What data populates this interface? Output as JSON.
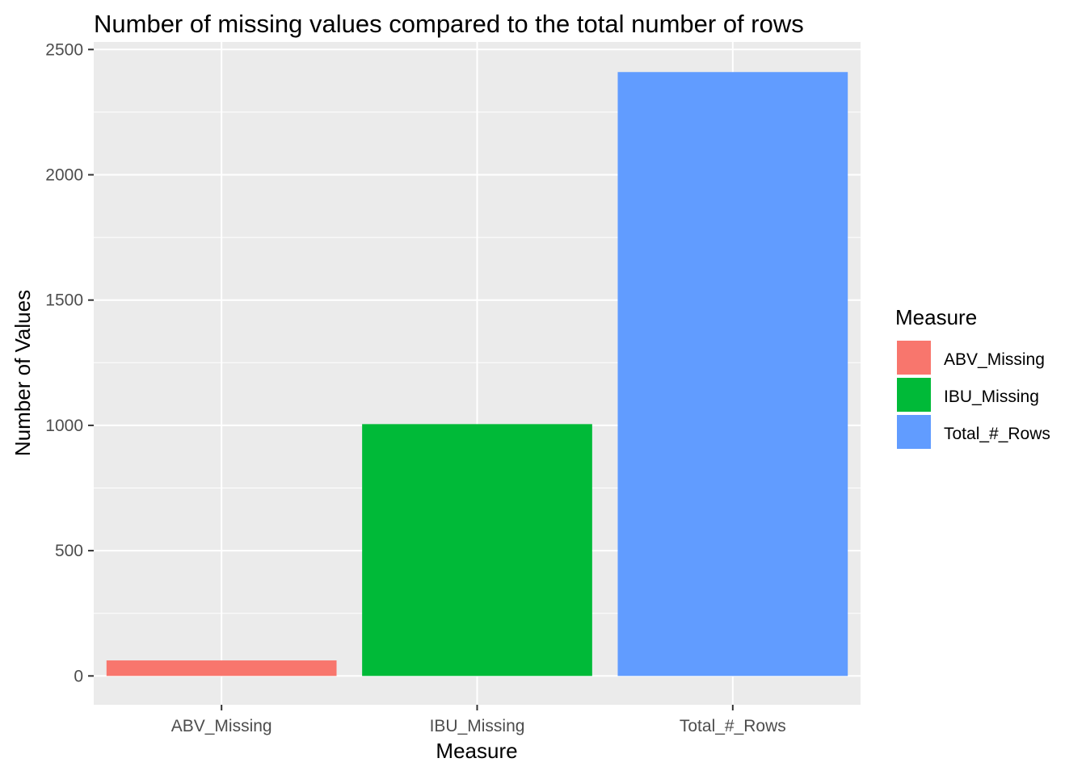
{
  "chart_data": {
    "type": "bar",
    "title": "Number of missing values compared to the total number of rows",
    "xlabel": "Measure",
    "ylabel": "Number of Values",
    "categories": [
      "ABV_Missing",
      "IBU_Missing",
      "Total_#_Rows"
    ],
    "values": [
      62,
      1005,
      2410
    ],
    "colors": [
      "#F8766D",
      "#00BA38",
      "#619CFF"
    ],
    "ylim": [
      -115,
      2530
    ],
    "yticks": [
      0,
      500,
      1000,
      1500,
      2000,
      2500
    ],
    "grid": true,
    "panel_background": "#EBEBEB",
    "legend": {
      "title": "Measure",
      "placement": "right",
      "entries": [
        "ABV_Missing",
        "IBU_Missing",
        "Total_#_Rows"
      ]
    }
  }
}
